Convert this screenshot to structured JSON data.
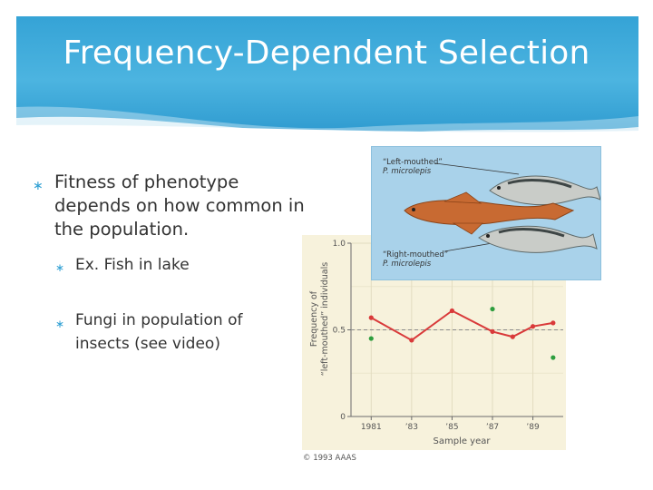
{
  "slide": {
    "title": "Frequency-Dependent Selection",
    "bullets": [
      "Fitness of phenotype depends on how common in the population.",
      "Ex. Fish in lake",
      "Fungi in population of insects (see video)"
    ],
    "bullet_symbol": "∗"
  },
  "figure": {
    "fish_labels": {
      "left_line1": "“Left-mouthed”",
      "left_line2": "P. microlepis",
      "right_line1": "“Right-mouthed”",
      "right_line2": "P. microlepis"
    },
    "copyright": "© 1993 AAAS"
  },
  "chart_data": {
    "type": "line",
    "xlabel": "Sample year",
    "ylabel_line1": "Frequency of",
    "ylabel_line2": "“left-mouthed” individuals",
    "x_tick_labels": [
      "1981",
      "’83",
      "’85",
      "’87",
      "’89"
    ],
    "x_tick_years": [
      1981,
      1983,
      1985,
      1987,
      1989
    ],
    "y_tick_labels": [
      "0",
      "0.5",
      "1.0"
    ],
    "y_tick_values": [
      0,
      0.5,
      1.0
    ],
    "xlim": [
      1980,
      1990.5
    ],
    "ylim": [
      0,
      1.0
    ],
    "reference_line": 0.5,
    "series": [
      {
        "style": "line",
        "color": "#d93a3a",
        "x": [
          1981,
          1983,
          1985,
          1987,
          1988,
          1989,
          1990
        ],
        "y": [
          0.57,
          0.44,
          0.61,
          0.49,
          0.46,
          0.52,
          0.54
        ]
      },
      {
        "style": "points",
        "color": "#2e9e3e",
        "x": [
          1981,
          1987,
          1990
        ],
        "y": [
          0.45,
          0.62,
          0.34
        ]
      }
    ]
  }
}
